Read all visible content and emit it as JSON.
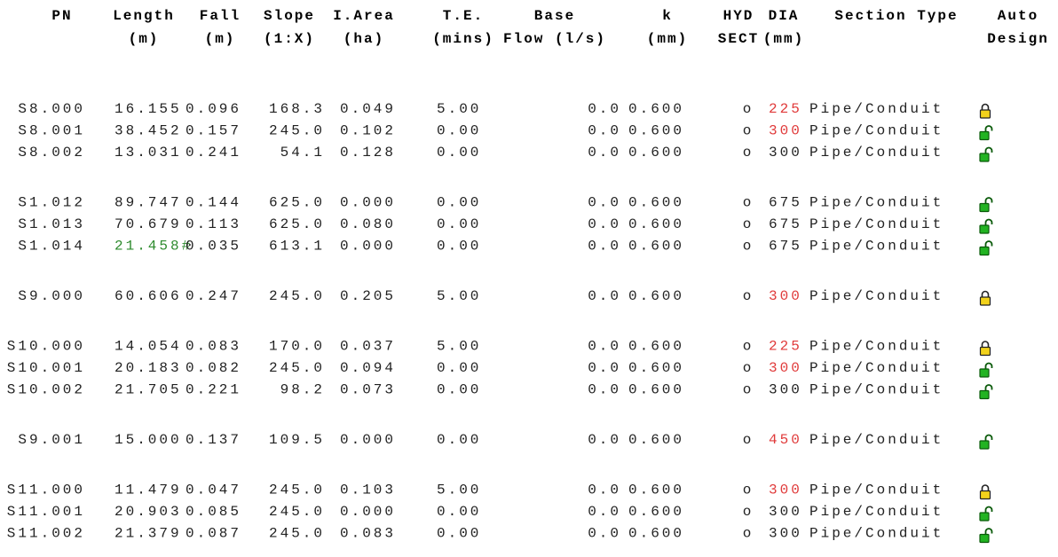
{
  "table": {
    "header": [
      [
        "PN",
        ""
      ],
      [
        "Length",
        "(m)"
      ],
      [
        "Fall",
        "(m)"
      ],
      [
        "Slope",
        "(1:X)"
      ],
      [
        "I.Area",
        "(ha)"
      ],
      [
        "T.E.",
        "(mins)"
      ],
      [
        "Base",
        "Flow (l/s)"
      ],
      [
        "k",
        "(mm)"
      ],
      [
        "HYD",
        "SECT"
      ],
      [
        "DIA",
        "(mm)"
      ],
      [
        "Section Type",
        ""
      ],
      [
        "Auto",
        "Design"
      ]
    ],
    "groups": [
      [
        {
          "pn": "S8.000",
          "length": "16.155",
          "fall": "0.096",
          "slope": "168.3",
          "iarea": "0.049",
          "te": "5.00",
          "base": "0.0",
          "k": "0.600",
          "hyd": "o",
          "dia": "225",
          "dia_color": "#e03a3a",
          "section": "Pipe/Conduit",
          "lock": "locked"
        },
        {
          "pn": "S8.001",
          "length": "38.452",
          "fall": "0.157",
          "slope": "245.0",
          "iarea": "0.102",
          "te": "0.00",
          "base": "0.0",
          "k": "0.600",
          "hyd": "o",
          "dia": "300",
          "dia_color": "#e03a3a",
          "section": "Pipe/Conduit",
          "lock": "open"
        },
        {
          "pn": "S8.002",
          "length": "13.031",
          "fall": "0.241",
          "slope": "54.1",
          "iarea": "0.128",
          "te": "0.00",
          "base": "0.0",
          "k": "0.600",
          "hyd": "o",
          "dia": "300",
          "section": "Pipe/Conduit",
          "lock": "open"
        }
      ],
      [
        {
          "pn": "S1.012",
          "length": "89.747",
          "fall": "0.144",
          "slope": "625.0",
          "iarea": "0.000",
          "te": "0.00",
          "base": "0.0",
          "k": "0.600",
          "hyd": "o",
          "dia": "675",
          "section": "Pipe/Conduit",
          "lock": "open"
        },
        {
          "pn": "S1.013",
          "length": "70.679",
          "fall": "0.113",
          "slope": "625.0",
          "iarea": "0.080",
          "te": "0.00",
          "base": "0.0",
          "k": "0.600",
          "hyd": "o",
          "dia": "675",
          "section": "Pipe/Conduit",
          "lock": "open"
        },
        {
          "pn": "S1.014",
          "length": "21.458#",
          "length_color": "#2e8b2e",
          "fall": "0.035",
          "slope": "613.1",
          "iarea": "0.000",
          "te": "0.00",
          "base": "0.0",
          "k": "0.600",
          "hyd": "o",
          "dia": "675",
          "section": "Pipe/Conduit",
          "lock": "open"
        }
      ],
      [
        {
          "pn": "S9.000",
          "length": "60.606",
          "fall": "0.247",
          "slope": "245.0",
          "iarea": "0.205",
          "te": "5.00",
          "base": "0.0",
          "k": "0.600",
          "hyd": "o",
          "dia": "300",
          "dia_color": "#e03a3a",
          "section": "Pipe/Conduit",
          "lock": "locked"
        }
      ],
      [
        {
          "pn": "S10.000",
          "length": "14.054",
          "fall": "0.083",
          "slope": "170.0",
          "iarea": "0.037",
          "te": "5.00",
          "base": "0.0",
          "k": "0.600",
          "hyd": "o",
          "dia": "225",
          "dia_color": "#e03a3a",
          "section": "Pipe/Conduit",
          "lock": "locked"
        },
        {
          "pn": "S10.001",
          "length": "20.183",
          "fall": "0.082",
          "slope": "245.0",
          "iarea": "0.094",
          "te": "0.00",
          "base": "0.0",
          "k": "0.600",
          "hyd": "o",
          "dia": "300",
          "dia_color": "#e03a3a",
          "section": "Pipe/Conduit",
          "lock": "open"
        },
        {
          "pn": "S10.002",
          "length": "21.705",
          "fall": "0.221",
          "slope": "98.2",
          "iarea": "0.073",
          "te": "0.00",
          "base": "0.0",
          "k": "0.600",
          "hyd": "o",
          "dia": "300",
          "section": "Pipe/Conduit",
          "lock": "open"
        }
      ],
      [
        {
          "pn": "S9.001",
          "length": "15.000",
          "fall": "0.137",
          "slope": "109.5",
          "iarea": "0.000",
          "te": "0.00",
          "base": "0.0",
          "k": "0.600",
          "hyd": "o",
          "dia": "450",
          "dia_color": "#e03a3a",
          "section": "Pipe/Conduit",
          "lock": "open"
        }
      ],
      [
        {
          "pn": "S11.000",
          "length": "11.479",
          "fall": "0.047",
          "slope": "245.0",
          "iarea": "0.103",
          "te": "5.00",
          "base": "0.0",
          "k": "0.600",
          "hyd": "o",
          "dia": "300",
          "dia_color": "#e03a3a",
          "section": "Pipe/Conduit",
          "lock": "locked"
        },
        {
          "pn": "S11.001",
          "length": "20.903",
          "fall": "0.085",
          "slope": "245.0",
          "iarea": "0.000",
          "te": "0.00",
          "base": "0.0",
          "k": "0.600",
          "hyd": "o",
          "dia": "300",
          "section": "Pipe/Conduit",
          "lock": "open"
        },
        {
          "pn": "S11.002",
          "length": "21.379",
          "fall": "0.087",
          "slope": "245.0",
          "iarea": "0.083",
          "te": "0.00",
          "base": "0.0",
          "k": "0.600",
          "hyd": "o",
          "dia": "300",
          "section": "Pipe/Conduit",
          "lock": "open"
        }
      ]
    ]
  }
}
